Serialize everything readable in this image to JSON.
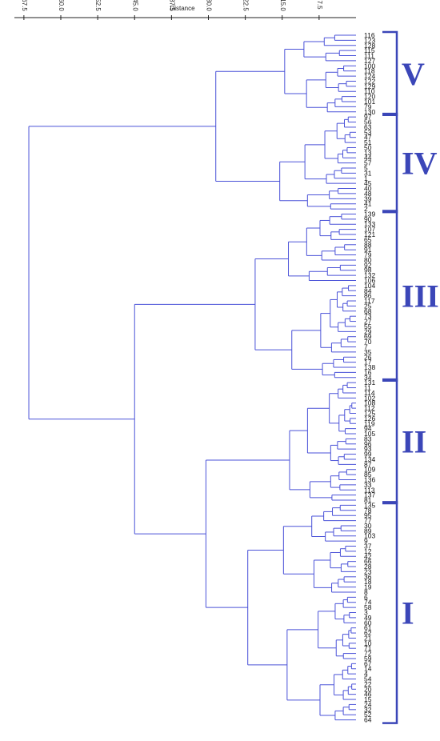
{
  "chart_data": {
    "type": "dendrogram",
    "xlabel": "Distance",
    "x_ticks": [
      "67.5",
      "60.0",
      "52.5",
      "45.0",
      "37.5",
      "30.0",
      "22.5",
      "15.0",
      "7.5"
    ],
    "x_tick_values": [
      67.5,
      60.0,
      52.5,
      45.0,
      37.5,
      30.0,
      22.5,
      15.0,
      7.5
    ],
    "xlim": [
      70,
      0
    ],
    "orientation": "root-left-leaves-right",
    "line_color": "#4a52d8",
    "bracket_color": "#3b46b8",
    "leaves": [
      "116",
      "123",
      "128",
      "115",
      "111",
      "127",
      "100",
      "118",
      "124",
      "122",
      "129",
      "110",
      "120",
      "101",
      "79",
      "130",
      "97",
      "56",
      "63",
      "53",
      "47",
      "51",
      "50",
      "13",
      "44",
      "57",
      "5",
      "31",
      "1",
      "45",
      "40",
      "48",
      "39",
      "41",
      "2",
      "139",
      "90",
      "133",
      "107",
      "121",
      "65",
      "88",
      "91",
      "79",
      "80",
      "92",
      "98",
      "132",
      "106",
      "104",
      "84",
      "86",
      "117",
      "25",
      "68",
      "73",
      "27",
      "55",
      "29",
      "69",
      "70",
      "7",
      "35",
      "26",
      "17",
      "138",
      "16",
      "34",
      "131",
      "11",
      "114",
      "102",
      "108",
      "112",
      "125",
      "126",
      "119",
      "94",
      "105",
      "83",
      "96",
      "93",
      "99",
      "134",
      "87",
      "109",
      "85",
      "136",
      "33",
      "113",
      "137",
      "81",
      "135",
      "78",
      "95",
      "77",
      "30",
      "89",
      "103",
      "9",
      "37",
      "12",
      "42",
      "66",
      "28",
      "23",
      "36",
      "18",
      "19",
      "8",
      "6",
      "74",
      "58",
      "3",
      "49",
      "60",
      "61",
      "62",
      "21",
      "10",
      "71",
      "72",
      "59",
      "67",
      "14",
      "4",
      "54",
      "22",
      "20",
      "46",
      "15",
      "24",
      "32",
      "52",
      "64"
    ],
    "clusters": [
      {
        "name": "V",
        "from": 0,
        "to": 15,
        "link_distance": 28.5
      },
      {
        "name": "IV",
        "from": 16,
        "to": 34,
        "link_distance": 28.5
      },
      {
        "name": "III",
        "from": 35,
        "to": 67,
        "link_distance": 42.5
      },
      {
        "name": "II",
        "from": 68,
        "to": 91,
        "link_distance": 42.5
      },
      {
        "name": "I",
        "from": 92,
        "to": 134,
        "link_distance": 42.5
      }
    ],
    "root_distance": 66.5,
    "merges": [
      {
        "clusters": [
          "V",
          "IV"
        ],
        "distance": 28.5
      },
      {
        "clusters": [
          "III",
          "II",
          "I"
        ],
        "distance": 45.0
      },
      {
        "clusters": [
          "V+IV",
          "III+II+I"
        ],
        "distance": 66.5
      }
    ]
  }
}
